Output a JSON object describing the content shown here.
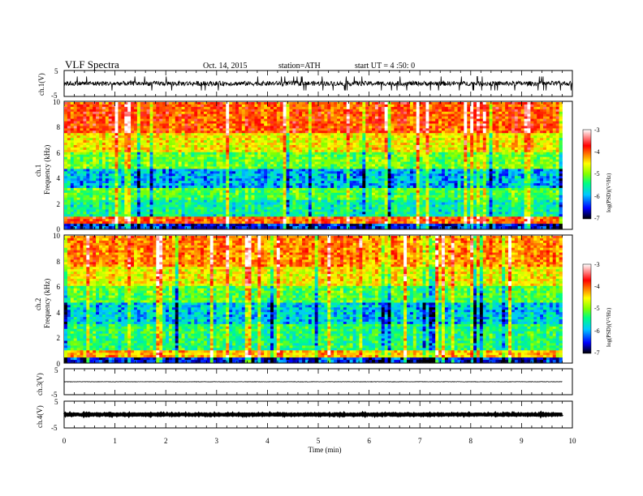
{
  "header": {
    "title": "VLF  Spectra",
    "date": "Oct. 14, 2015",
    "station": "station=ATH",
    "start": "start  UT  =   4  :50: 0"
  },
  "chart_data": [
    {
      "type": "line",
      "panel": "ch1-waveform",
      "ylabel": "ch.1(V)",
      "ylim": [
        -5,
        5
      ],
      "yticks": [
        "5",
        "-5"
      ],
      "xlim": [
        0,
        10
      ],
      "series": [
        {
          "color": "#000000",
          "baseline": 0,
          "amplitude_range": [
            -1.6,
            1.6
          ],
          "spikes": "frequent sferics"
        }
      ]
    },
    {
      "type": "heatmap",
      "panel": "ch1-spectrogram",
      "ylabel": "Frequency (kHz)",
      "channel_label": "ch.1",
      "ylim": [
        0,
        10
      ],
      "yticks": [
        "10",
        "8",
        "6",
        "4",
        "2",
        "0"
      ],
      "xlim": [
        0,
        9.8
      ],
      "colorbar": {
        "label": "log(PSD)(V²/Hz)",
        "ticks": [
          "-3",
          "-4",
          "-5",
          "-6",
          "-7"
        ],
        "range": [
          -7,
          -3
        ],
        "colors": [
          "#000000",
          "#0000ff",
          "#00c8ff",
          "#00ff80",
          "#80ff00",
          "#ffff00",
          "#ff8000",
          "#ff0000",
          "#ffffff"
        ]
      },
      "bands": [
        {
          "freq_khz": [
            0,
            0.3
          ],
          "level": -6.5
        },
        {
          "freq_khz": [
            0.3,
            0.9
          ],
          "level": -3.8
        },
        {
          "freq_khz": [
            0.9,
            2.2
          ],
          "level": -5.6
        },
        {
          "freq_khz": [
            2.2,
            3.2
          ],
          "level": -5.2
        },
        {
          "freq_khz": [
            3.2,
            4.8
          ],
          "level": -6.0
        },
        {
          "freq_khz": [
            4.8,
            6.0
          ],
          "level": -5.1
        },
        {
          "freq_khz": [
            6.0,
            7.6
          ],
          "level": -4.5
        },
        {
          "freq_khz": [
            7.6,
            10
          ],
          "level": -3.8
        }
      ]
    },
    {
      "type": "heatmap",
      "panel": "ch2-spectrogram",
      "ylabel": "Frequency (kHz)",
      "channel_label": "ch.2",
      "ylim": [
        0,
        10
      ],
      "yticks": [
        "10",
        "8",
        "6",
        "4",
        "2",
        "0"
      ],
      "xlim": [
        0,
        9.8
      ],
      "colorbar": {
        "label": "log(PSD)(V²/Hz)",
        "ticks": [
          "-3",
          "-4",
          "-5",
          "-6",
          "-7"
        ],
        "range": [
          -7,
          -3
        ],
        "colors": [
          "#000000",
          "#0000ff",
          "#00c8ff",
          "#00ff80",
          "#80ff00",
          "#ffff00",
          "#ff8000",
          "#ff0000",
          "#ffffff"
        ]
      },
      "bands": [
        {
          "freq_khz": [
            0,
            0.4
          ],
          "level": -6.5
        },
        {
          "freq_khz": [
            0.4,
            1.0
          ],
          "level": -4.2
        },
        {
          "freq_khz": [
            1.0,
            3.0
          ],
          "level": -5.4
        },
        {
          "freq_khz": [
            3.0,
            4.8
          ],
          "level": -5.9
        },
        {
          "freq_khz": [
            4.8,
            6.0
          ],
          "level": -5.2
        },
        {
          "freq_khz": [
            6.0,
            7.6
          ],
          "level": -4.5
        },
        {
          "freq_khz": [
            7.6,
            10
          ],
          "level": -4.0
        }
      ]
    },
    {
      "type": "line",
      "panel": "ch3-waveform",
      "ylabel": "ch.3(V)",
      "ylim": [
        -5,
        5
      ],
      "yticks": [
        "5",
        "-5"
      ],
      "xlim": [
        0,
        9.8
      ],
      "series": [
        {
          "color": "#000000",
          "baseline": 0,
          "amplitude_range": [
            -0.15,
            0.15
          ]
        }
      ]
    },
    {
      "type": "line",
      "panel": "ch4-waveform",
      "ylabel": "ch.4(V)",
      "ylim": [
        -5,
        5
      ],
      "yticks": [
        "5",
        "-5"
      ],
      "xlim": [
        0,
        9.8
      ],
      "series": [
        {
          "color": "#000000",
          "baseline": 0,
          "amplitude_range": [
            -0.3,
            0.3
          ]
        }
      ]
    }
  ],
  "xaxis": {
    "label": "Time  (min)",
    "range": [
      0,
      10
    ],
    "ticks": [
      "0",
      "1",
      "2",
      "3",
      "4",
      "5",
      "6",
      "7",
      "8",
      "9",
      "10"
    ]
  }
}
